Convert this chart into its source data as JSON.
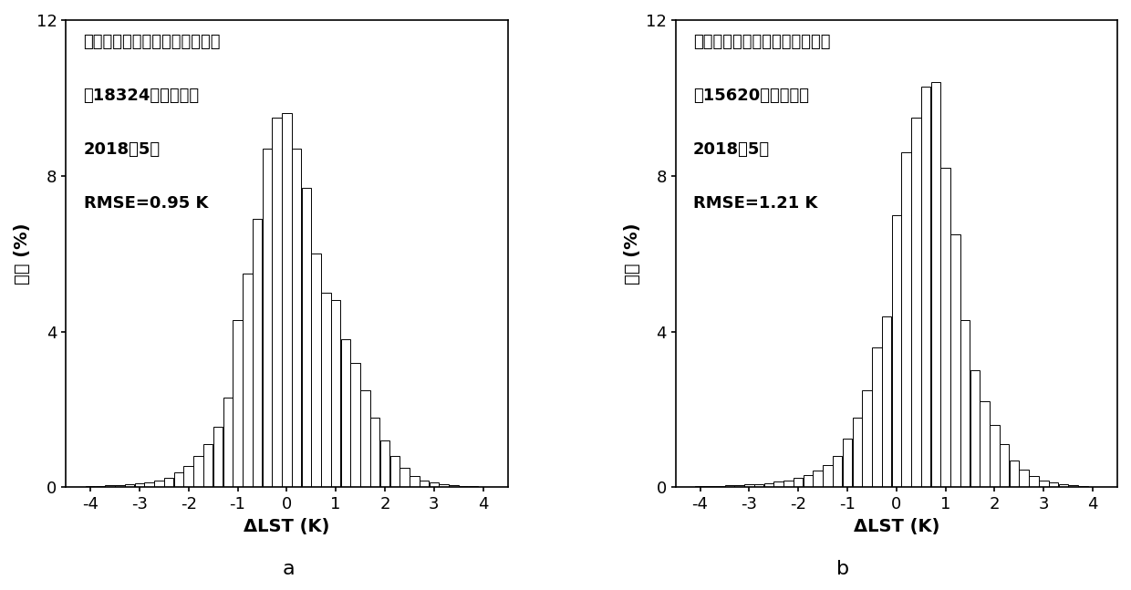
{
  "left_title_lines": [
    "澳大利亚晚上观测数据应用结果",
    "共18324个有效像素",
    "2018年5月",
    "RMSE=0.95 K"
  ],
  "right_title_lines": [
    "澳大利亚白天观测数据应用结果",
    "共15620个有效像素",
    "2018年5月",
    "RMSE=1.21 K"
  ],
  "xlabel": "ΔLST (K)",
  "ylabel": "频率 (%)",
  "label_a": "a",
  "label_b": "b",
  "ylim": [
    0,
    12
  ],
  "xlim": [
    -4.5,
    4.5
  ],
  "xticks": [
    -4,
    -3,
    -2,
    -1,
    0,
    1,
    2,
    3,
    4
  ],
  "yticks": [
    0,
    4,
    8,
    12
  ],
  "bar_width": 0.195,
  "left_bars": {
    "centers": [
      -4.0,
      -3.8,
      -3.6,
      -3.4,
      -3.2,
      -3.0,
      -2.8,
      -2.6,
      -2.4,
      -2.2,
      -2.0,
      -1.8,
      -1.6,
      -1.4,
      -1.2,
      -1.0,
      -0.8,
      -0.6,
      -0.4,
      -0.2,
      0.0,
      0.2,
      0.4,
      0.6,
      0.8,
      1.0,
      1.2,
      1.4,
      1.6,
      1.8,
      2.0,
      2.2,
      2.4,
      2.6,
      2.8,
      3.0,
      3.2,
      3.4,
      3.6,
      3.8,
      4.0
    ],
    "heights": [
      0.04,
      0.04,
      0.05,
      0.06,
      0.08,
      0.1,
      0.13,
      0.18,
      0.25,
      0.38,
      0.55,
      0.8,
      1.1,
      1.55,
      2.3,
      4.3,
      5.5,
      6.9,
      8.7,
      9.5,
      9.6,
      8.7,
      7.7,
      6.0,
      5.0,
      4.8,
      3.8,
      3.2,
      2.5,
      1.8,
      1.2,
      0.8,
      0.5,
      0.3,
      0.18,
      0.12,
      0.08,
      0.06,
      0.04,
      0.03,
      0.02
    ]
  },
  "right_bars": {
    "centers": [
      -4.0,
      -3.8,
      -3.6,
      -3.4,
      -3.2,
      -3.0,
      -2.8,
      -2.6,
      -2.4,
      -2.2,
      -2.0,
      -1.8,
      -1.6,
      -1.4,
      -1.2,
      -1.0,
      -0.8,
      -0.6,
      -0.4,
      -0.2,
      0.0,
      0.2,
      0.4,
      0.6,
      0.8,
      1.0,
      1.2,
      1.4,
      1.6,
      1.8,
      2.0,
      2.2,
      2.4,
      2.6,
      2.8,
      3.0,
      3.2,
      3.4,
      3.6,
      3.8,
      4.0
    ],
    "heights": [
      0.03,
      0.03,
      0.04,
      0.05,
      0.06,
      0.07,
      0.09,
      0.11,
      0.14,
      0.18,
      0.24,
      0.32,
      0.42,
      0.58,
      0.8,
      1.25,
      1.8,
      2.5,
      3.6,
      4.4,
      7.0,
      8.6,
      9.5,
      10.3,
      10.4,
      8.2,
      6.5,
      4.3,
      3.0,
      2.2,
      1.6,
      1.1,
      0.7,
      0.45,
      0.3,
      0.18,
      0.12,
      0.08,
      0.05,
      0.03,
      0.02
    ]
  },
  "bar_color": "white",
  "bar_edgecolor": "black",
  "bar_linewidth": 0.7,
  "background_color": "white",
  "font_size_labels": 14,
  "font_size_ticks": 13,
  "font_size_annotation": 13,
  "font_size_sublabel": 16
}
